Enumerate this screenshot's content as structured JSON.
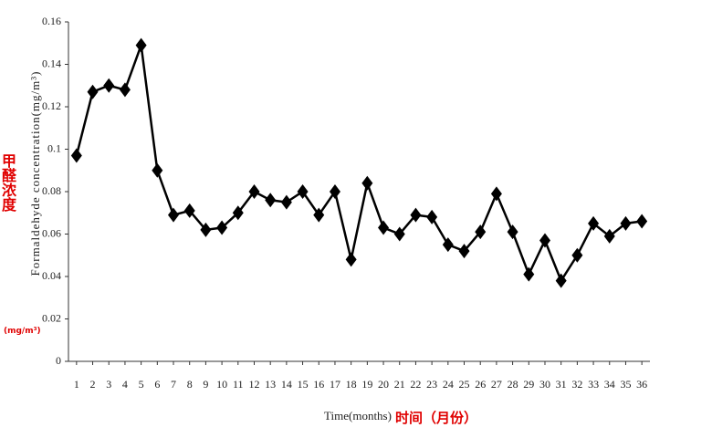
{
  "chart_data": {
    "type": "line",
    "y_label": "Formaldehyde concentration(mg/m³)",
    "y_label_cn": "甲醛浓度",
    "y_unit_cn": "(mg/m³)",
    "x_label": "Time(months)",
    "x_label_cn": "时间（月份）",
    "x": [
      1,
      2,
      3,
      4,
      5,
      6,
      7,
      8,
      9,
      10,
      11,
      12,
      13,
      14,
      15,
      16,
      17,
      18,
      19,
      20,
      21,
      22,
      23,
      24,
      25,
      26,
      27,
      28,
      29,
      30,
      31,
      32,
      33,
      34,
      35,
      36
    ],
    "values": [
      0.097,
      0.127,
      0.13,
      0.128,
      0.149,
      0.09,
      0.069,
      0.071,
      0.062,
      0.063,
      0.07,
      0.08,
      0.076,
      0.075,
      0.08,
      0.069,
      0.08,
      0.048,
      0.084,
      0.063,
      0.06,
      0.069,
      0.068,
      0.055,
      0.052,
      0.061,
      0.079,
      0.061,
      0.041,
      0.057,
      0.038,
      0.05,
      0.065,
      0.059,
      0.065,
      0.066
    ],
    "color": "#000000",
    "xlim": [
      0.5,
      36.5
    ],
    "xticks": [
      1,
      2,
      3,
      4,
      5,
      6,
      7,
      8,
      9,
      10,
      11,
      12,
      13,
      14,
      15,
      16,
      17,
      18,
      19,
      20,
      21,
      22,
      23,
      24,
      25,
      26,
      27,
      28,
      29,
      30,
      31,
      32,
      33,
      34,
      35,
      36
    ],
    "ylim": [
      0,
      0.16
    ],
    "yticks": [
      0,
      0.02,
      0.04,
      0.06,
      0.08,
      0.1,
      0.12,
      0.14,
      0.16
    ],
    "grid": false
  }
}
